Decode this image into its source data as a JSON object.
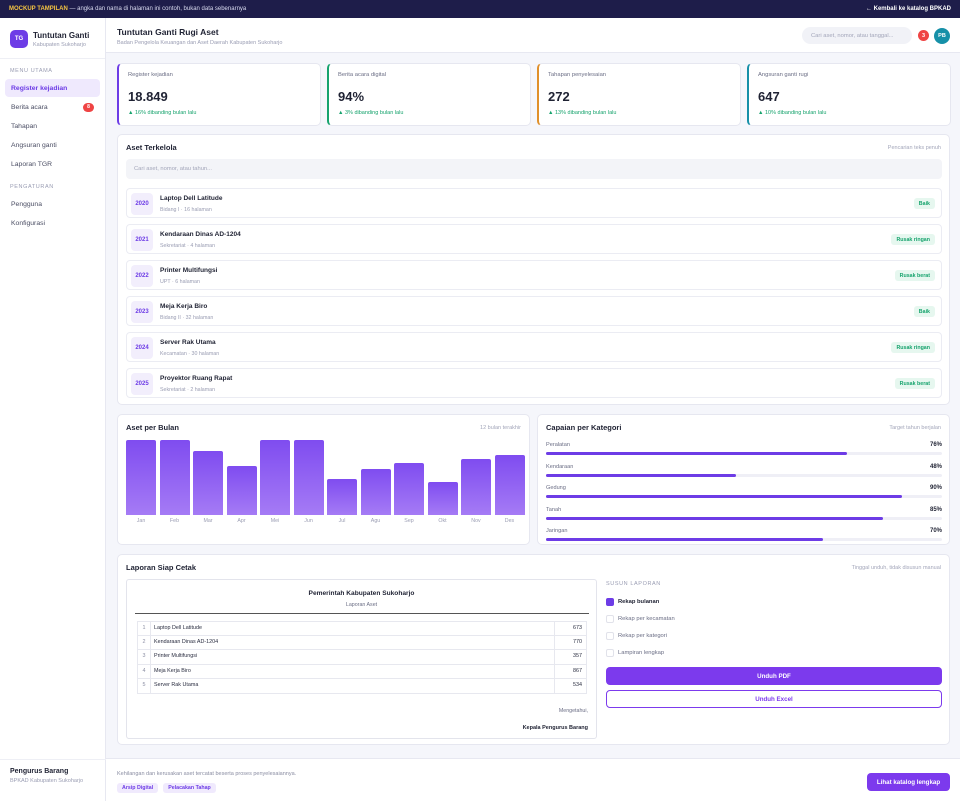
{
  "banner": {
    "tag": "MOCKUP TAMPILAN",
    "text": "— angka dan nama di halaman ini contoh, bukan data sebenarnya",
    "back_link": "← Kembali ke katalog BPKAD"
  },
  "brand": {
    "logo": "TG",
    "title": "Tuntutan Ganti",
    "subtitle": "Kabupaten Sukoharjo"
  },
  "sidebar": {
    "section_main": "MENU UTAMA",
    "items": [
      {
        "label": "Register kejadian",
        "active": true
      },
      {
        "label": "Berita acara",
        "badge": "8"
      },
      {
        "label": "Tahapan"
      },
      {
        "label": "Angsuran ganti"
      },
      {
        "label": "Laporan TGR"
      }
    ],
    "section_settings": "PENGATURAN",
    "settings_items": [
      {
        "label": "Pengguna"
      },
      {
        "label": "Konfigurasi"
      }
    ],
    "footer": {
      "name": "Pengurus Barang",
      "role": "BPKAD Kabupaten Sukoharjo"
    }
  },
  "header": {
    "title": "Tuntutan Ganti Rugi Aset",
    "subtitle": "Badan Pengelola Keuangan dan Aset Daerah Kabupaten Sukoharjo",
    "search_placeholder": "Cari aset, nomor, atau tanggal...",
    "notif_count": "3",
    "avatar": "PB"
  },
  "kpis": [
    {
      "label": "Register kejadian",
      "value": "18.849",
      "delta": "▲ 16% dibanding bulan lalu",
      "color": "#6d3ce6"
    },
    {
      "label": "Berita acara digital",
      "value": "94%",
      "delta": "▲ 3% dibanding bulan lalu",
      "color": "#16a36d"
    },
    {
      "label": "Tahapan penyelesaian",
      "value": "272",
      "delta": "▲ 13% dibanding bulan lalu",
      "color": "#e0902a"
    },
    {
      "label": "Angsuran ganti rugi",
      "value": "647",
      "delta": "▲ 10% dibanding bulan lalu",
      "color": "#1690a8"
    }
  ],
  "assets": {
    "title": "Aset Terkelola",
    "note": "Pencarian teks penuh",
    "search_placeholder": "Cari aset, nomor, atau tahun...",
    "rows": [
      {
        "year": "2020",
        "name": "Laptop Dell Latitude",
        "meta": "Bidang I · 16 halaman",
        "status": "Baik"
      },
      {
        "year": "2021",
        "name": "Kendaraan Dinas AD-1204",
        "meta": "Sekretariat · 4 halaman",
        "status": "Rusak ringan"
      },
      {
        "year": "2022",
        "name": "Printer Multifungsi",
        "meta": "UPT · 6 halaman",
        "status": "Rusak berat"
      },
      {
        "year": "2023",
        "name": "Meja Kerja Biro",
        "meta": "Bidang II · 32 halaman",
        "status": "Baik"
      },
      {
        "year": "2024",
        "name": "Server Rak Utama",
        "meta": "Kecamatan · 30 halaman",
        "status": "Rusak ringan"
      },
      {
        "year": "2025",
        "name": "Proyektor Ruang Rapat",
        "meta": "Sekretariat · 2 halaman",
        "status": "Rusak berat"
      }
    ]
  },
  "monthly": {
    "title": "Aset per Bulan",
    "note": "12 bulan terakhir"
  },
  "chart_data": {
    "type": "bar",
    "categories": [
      "Jan",
      "Feb",
      "Mar",
      "Apr",
      "Mei",
      "Jun",
      "Jul",
      "Agu",
      "Sep",
      "Okt",
      "Nov",
      "Des"
    ],
    "values": [
      100,
      100,
      86,
      66,
      100,
      100,
      48,
      62,
      69,
      44,
      75,
      80
    ],
    "ylim": [
      0,
      100
    ],
    "grid": false,
    "color": "#7f4cf0"
  },
  "categories": {
    "title": "Capaian per Kategori",
    "note": "Target tahun berjalan",
    "items": [
      {
        "label": "Peralatan",
        "pct_text": "76%",
        "pct": 76
      },
      {
        "label": "Kendaraan",
        "pct_text": "48%",
        "pct": 48
      },
      {
        "label": "Gedung",
        "pct_text": "90%",
        "pct": 90
      },
      {
        "label": "Tanah",
        "pct_text": "85%",
        "pct": 85
      },
      {
        "label": "Jaringan",
        "pct_text": "70%",
        "pct": 70
      }
    ]
  },
  "report": {
    "title": "Laporan Siap Cetak",
    "note": "Tinggal unduh, tidak disusun manual",
    "paper_title": "Pemerintah Kabupaten Sukoharjo",
    "paper_sub": "Laporan Aset",
    "rows": [
      {
        "no": "1",
        "name": "Laptop Dell Latitude",
        "value": "673"
      },
      {
        "no": "2",
        "name": "Kendaraan Dinas AD-1204",
        "value": "770"
      },
      {
        "no": "3",
        "name": "Printer Multifungsi",
        "value": "357"
      },
      {
        "no": "4",
        "name": "Meja Kerja Biro",
        "value": "867"
      },
      {
        "no": "5",
        "name": "Server Rak Utama",
        "value": "534"
      }
    ],
    "know": "Mengetahui,",
    "signatory": "Kepala Pengurus Barang",
    "options_title": "SUSUN LAPORAN",
    "options": [
      {
        "label": "Rekap bulanan",
        "checked": true
      },
      {
        "label": "Rekap per kecamatan",
        "checked": false
      },
      {
        "label": "Rekap per kategori",
        "checked": false
      },
      {
        "label": "Lampiran lengkap",
        "checked": false
      }
    ],
    "btn_pdf": "Unduh PDF",
    "btn_excel": "Unduh Excel"
  },
  "footer": {
    "text": "Kehilangan dan kerusakan aset tercatat beserta proses penyelesaiannya.",
    "tags": [
      "Arsip Digital",
      "Pelacakan Tahap"
    ],
    "button": "Lihat katalog lengkap"
  },
  "colors": {
    "accent": "#6d3ce6",
    "success": "#16a36d",
    "danger": "#ef4444",
    "navy": "#1e1d4a"
  }
}
